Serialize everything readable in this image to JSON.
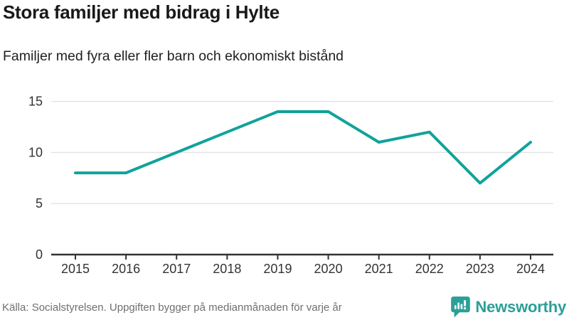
{
  "header": {
    "title": "Stora familjer med bidrag i Hylte",
    "subtitle": "Familjer med fyra eller fler barn och ekonomiskt bistånd"
  },
  "chart_data": {
    "type": "line",
    "categories": [
      "2015",
      "2016",
      "2017",
      "2018",
      "2019",
      "2020",
      "2021",
      "2022",
      "2023",
      "2024"
    ],
    "values": [
      8,
      8,
      10,
      12,
      14,
      14,
      11,
      12,
      7,
      11
    ],
    "title": "Stora familjer med bidrag i Hylte",
    "subtitle": "Familjer med fyra eller fler barn och ekonomiskt bistånd",
    "xlabel": "",
    "ylabel": "",
    "ylim": [
      0,
      15
    ],
    "yticks": [
      0,
      5,
      10,
      15
    ],
    "grid": "horizontal gridlines at yticks, legend none",
    "line_color": "#11a29b"
  },
  "footer": {
    "source": "Källa: Socialstyrelsen. Uppgiften bygger på medianmånaden för varje år",
    "logo_text": "Newsworthy"
  },
  "colors": {
    "accent": "#11a29b",
    "logo": "#2c9f98",
    "axis": "#333333",
    "grid": "#e2e2e2",
    "tick_label": "#333333",
    "text": "#191919",
    "muted": "#6f6f6f"
  }
}
